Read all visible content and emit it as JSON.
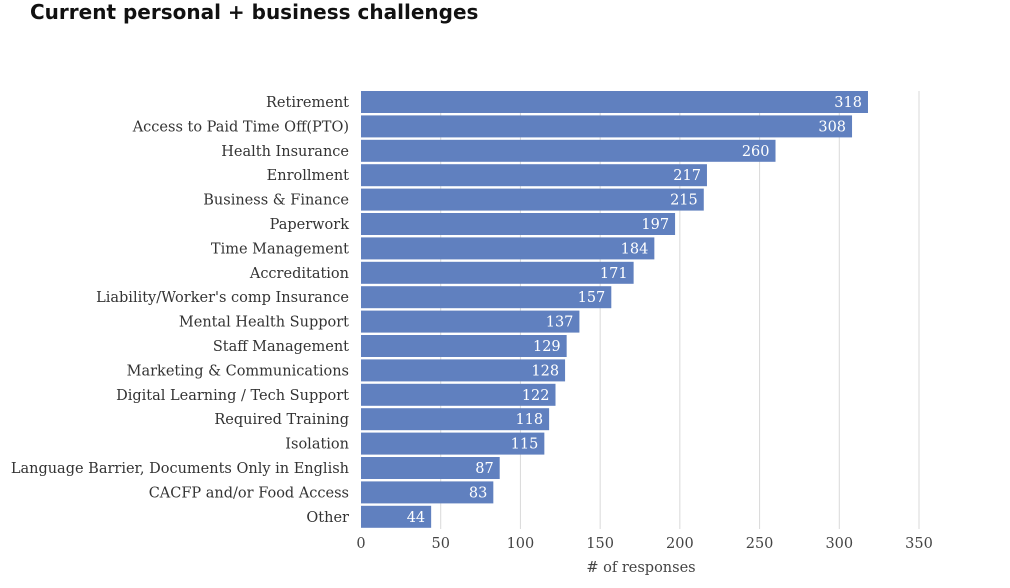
{
  "chart_data": {
    "type": "bar",
    "orientation": "horizontal",
    "title": "Current personal + business challenges",
    "xlabel": "# of responses",
    "ylabel": "",
    "xlim": [
      0,
      350
    ],
    "xticks": [
      0,
      50,
      100,
      150,
      200,
      250,
      300,
      350
    ],
    "grid": "vertical",
    "legend": "none",
    "bar_color": "#6080bf",
    "categories": [
      "Retirement",
      "Access to Paid Time Off(PTO)",
      "Health Insurance",
      "Enrollment",
      "Business & Finance",
      "Paperwork",
      "Time Management",
      "Accreditation",
      "Liability/Worker's comp Insurance",
      "Mental Health Support",
      "Staff Management",
      "Marketing & Communications",
      "Digital Learning / Tech Support",
      "Required Training",
      "Isolation",
      "Language Barrier, Documents Only in English",
      "CACFP and/or Food Access",
      "Other"
    ],
    "values": [
      318,
      308,
      260,
      217,
      215,
      197,
      184,
      171,
      157,
      137,
      129,
      128,
      122,
      118,
      115,
      87,
      83,
      44
    ]
  }
}
